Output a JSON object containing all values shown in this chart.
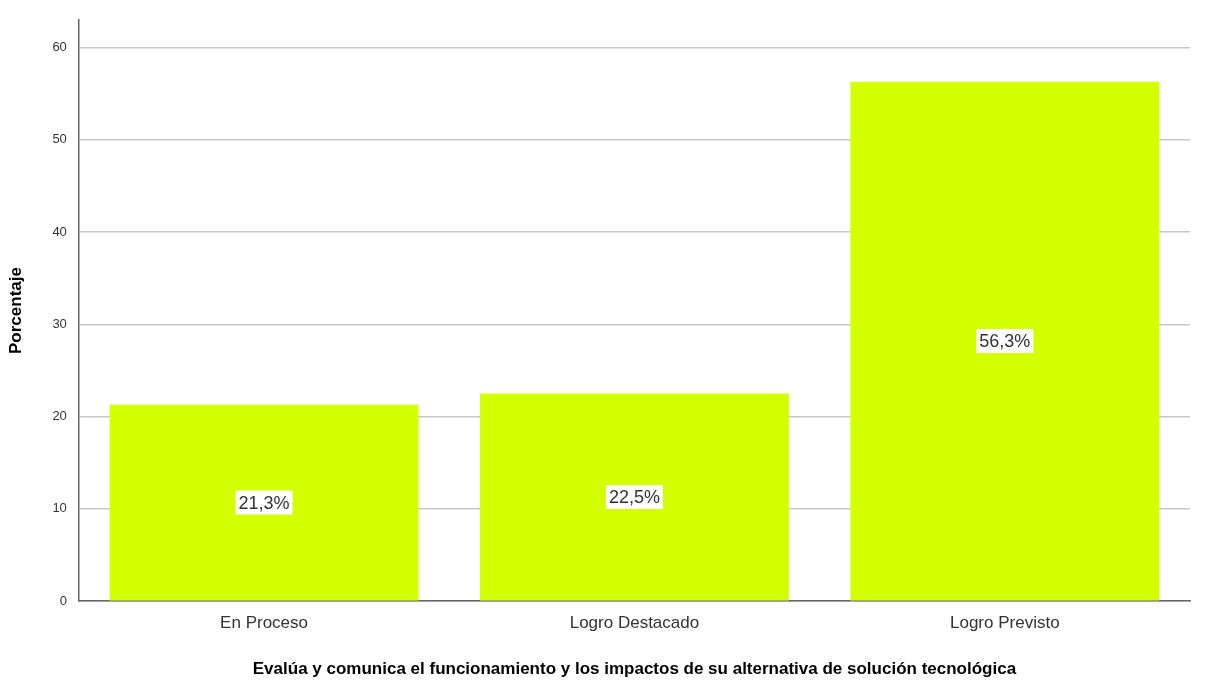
{
  "chart_data": {
    "type": "bar",
    "xlabel": "Evalúa y comunica el funcionamiento y los impactos de su alternativa de solución tecnológica",
    "ylabel": "Porcentaje",
    "categories": [
      "En Proceso",
      "Logro Destacado",
      "Logro Previsto"
    ],
    "values": [
      21.3,
      22.5,
      56.3
    ],
    "value_labels": [
      "21,3%",
      "22,5%",
      "56,3%"
    ],
    "color": "#d4ff00",
    "ylim": [
      0,
      63
    ],
    "yticks": [
      0,
      10,
      20,
      30,
      40,
      50,
      60
    ],
    "grid": "y"
  }
}
